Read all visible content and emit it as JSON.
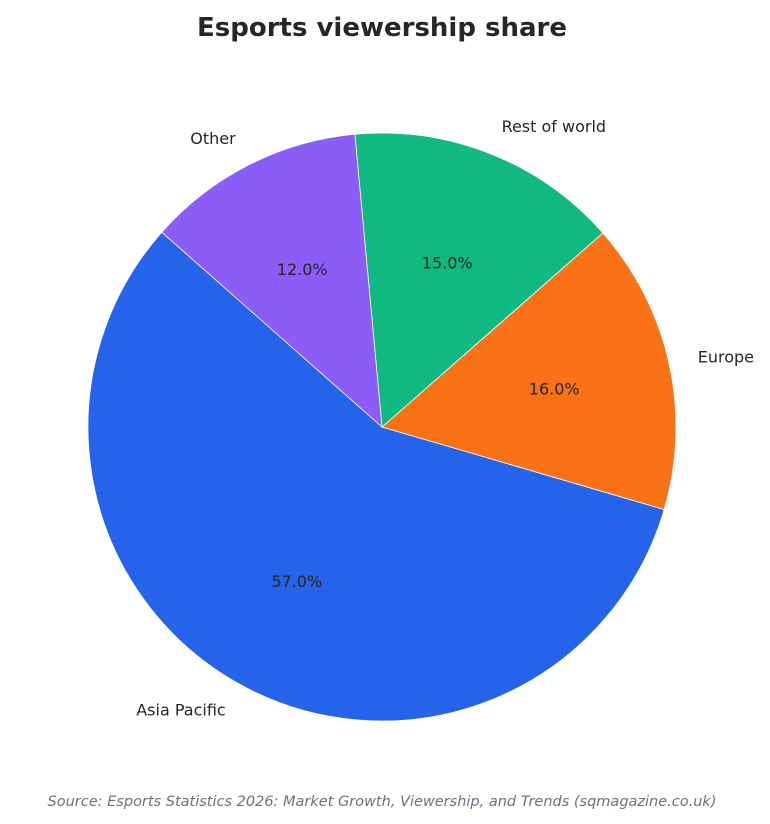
{
  "chart_data": {
    "type": "pie",
    "title": "Esports viewership share",
    "categories": [
      "Asia Pacific",
      "Europe",
      "Rest of world",
      "Other"
    ],
    "values": [
      57.0,
      16.0,
      15.0,
      12.0
    ],
    "percent_labels": [
      "57.0%",
      "16.0%",
      "15.0%",
      "12.0%"
    ],
    "colors": [
      "#2563eb",
      "#f97316",
      "#10b981",
      "#8b5cf6"
    ],
    "start_angle_deg": 138.5,
    "direction": "counterclockwise",
    "legend": "none"
  },
  "footer": {
    "source": "Source: Esports Statistics 2026: Market Growth, Viewership, and Trends (sqmagazine.co.uk)"
  }
}
